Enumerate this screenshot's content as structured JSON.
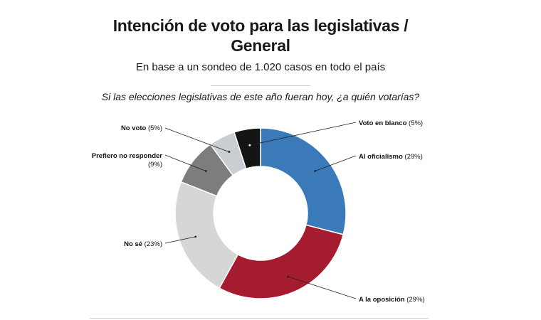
{
  "chart_data": {
    "type": "pie",
    "variant": "donut",
    "title_line1": "Intención de voto para las legislativas /",
    "title_line2": "General",
    "subtitle": "En base a un sondeo de 1.020 casos en todo el país",
    "question": "Si las elecciones legislativas de este año fueran hoy, ¿a quién votarías?",
    "slices": [
      {
        "label": "Al oficialismo",
        "pct_text": "(29%)",
        "value": 29,
        "color": "#3b7ab8"
      },
      {
        "label": "A la oposición",
        "pct_text": "(29%)",
        "value": 29,
        "color": "#a51c30"
      },
      {
        "label": "No sé",
        "pct_text": "(23%)",
        "value": 23,
        "color": "#d6d6d6"
      },
      {
        "label": "Prefiero no responder",
        "pct_text": "(9%)",
        "value": 9,
        "color": "#7d7d7d"
      },
      {
        "label": "No voto",
        "pct_text": "(5%)",
        "value": 5,
        "color": "#c9ced3"
      },
      {
        "label": "Voto en blanco",
        "pct_text": "(5%)",
        "value": 5,
        "color": "#141414"
      }
    ]
  }
}
